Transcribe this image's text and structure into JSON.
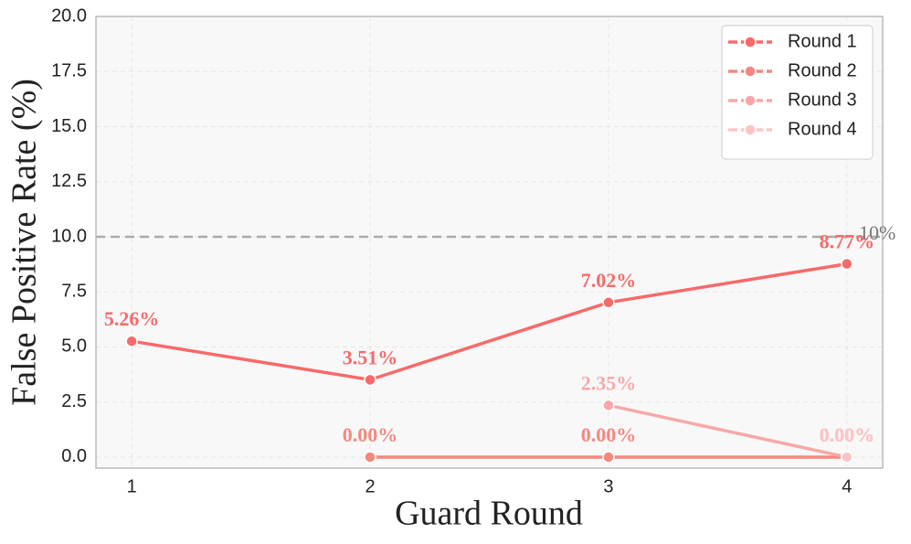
{
  "chart_data": {
    "type": "line",
    "x_label": "Guard Round",
    "y_label": "False Positive Rate (%)",
    "xlim": [
      0.85,
      4.15
    ],
    "ylim": [
      -0.5,
      20
    ],
    "xticks": [
      1,
      2,
      3,
      4
    ],
    "yticks": [
      {
        "value": 0,
        "label": "0.0"
      },
      2.5,
      {
        "value": 5,
        "label": "5.0"
      },
      7.5,
      {
        "value": 10,
        "label": "10.0"
      },
      12.5,
      {
        "value": 15,
        "label": "15.0"
      },
      17.5,
      {
        "value": 20,
        "label": "20.0"
      }
    ],
    "grid": true,
    "legend": "upper right",
    "reference_line": {
      "value": 10,
      "label": "10%",
      "color": "#aaaaaa"
    },
    "series": [
      {
        "name": "Round 1",
        "color": "#f76a6a",
        "x": [
          1,
          2,
          3,
          4
        ],
        "values": [
          5.26,
          3.51,
          7.02,
          8.77
        ],
        "value_labels": [
          "5.26%",
          "3.51%",
          "7.02%",
          "8.77%"
        ]
      },
      {
        "name": "Round 2",
        "color": "#f4887f",
        "x": [
          2,
          3,
          4
        ],
        "values": [
          0,
          0,
          0
        ],
        "value_labels": [
          "0.00%",
          "0.00%",
          "0.00%"
        ]
      },
      {
        "name": "Round 3",
        "color": "#f7a8a8",
        "x": [
          3,
          4
        ],
        "values": [
          2.35,
          0
        ],
        "value_labels": [
          "2.35%",
          "0.00%"
        ]
      },
      {
        "name": "Round 4",
        "color": "#fcc5c5",
        "x": [
          4
        ],
        "values": [
          0
        ],
        "value_labels": [
          "0.00%"
        ]
      }
    ]
  }
}
